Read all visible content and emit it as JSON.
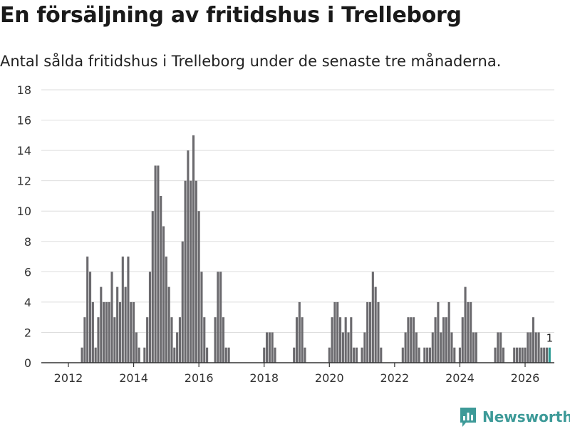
{
  "header": {
    "title": "En försäljning av fritidshus i Trelleborg",
    "subtitle": "Antal sålda fritidshus i Trelleborg under de senaste tre månaderna."
  },
  "brand": {
    "name": "Newsworthy"
  },
  "colors": {
    "bar": "#6b6a6e",
    "highlight": "#2b9a94",
    "grid": "#dddddd",
    "axis": "#333333",
    "brand": "#3d9a98"
  },
  "chart_data": {
    "type": "bar",
    "title": "En försäljning av fritidshus i Trelleborg",
    "subtitle": "Antal sålda fritidshus i Trelleborg under de senaste tre månaderna.",
    "xlabel": "",
    "ylabel": "",
    "ylim": [
      0,
      18
    ],
    "yticks": [
      "0",
      "2",
      "4",
      "6",
      "8",
      "10",
      "12",
      "14",
      "16",
      "18"
    ],
    "xticks": [
      "2012",
      "2014",
      "2016",
      "2018",
      "2020",
      "2022",
      "2024",
      "2026"
    ],
    "grid": true,
    "x_start": "2011-08",
    "frequency": "monthly",
    "values": [
      0,
      0,
      0,
      0,
      0,
      0,
      0,
      0,
      0,
      0,
      1,
      3,
      7,
      6,
      4,
      1,
      3,
      5,
      4,
      4,
      4,
      6,
      3,
      5,
      4,
      7,
      5,
      7,
      4,
      4,
      2,
      1,
      0,
      1,
      3,
      6,
      10,
      13,
      13,
      11,
      9,
      7,
      5,
      3,
      1,
      2,
      3,
      8,
      12,
      14,
      12,
      15,
      12,
      10,
      6,
      3,
      1,
      0,
      0,
      3,
      6,
      6,
      3,
      1,
      1,
      0,
      0,
      0,
      0,
      0,
      0,
      0,
      0,
      0,
      0,
      0,
      0,
      1,
      2,
      2,
      2,
      1,
      0,
      0,
      0,
      0,
      0,
      0,
      1,
      3,
      4,
      3,
      1,
      0,
      0,
      0,
      0,
      0,
      0,
      0,
      0,
      1,
      3,
      4,
      4,
      3,
      2,
      3,
      2,
      3,
      1,
      1,
      0,
      1,
      2,
      4,
      4,
      6,
      5,
      4,
      1,
      0,
      0,
      0,
      0,
      0,
      0,
      0,
      1,
      2,
      3,
      3,
      3,
      2,
      1,
      0,
      1,
      1,
      1,
      2,
      3,
      4,
      2,
      3,
      3,
      4,
      2,
      1,
      0,
      1,
      3,
      5,
      4,
      4,
      2,
      2,
      0,
      0,
      0,
      0,
      0,
      0,
      1,
      2,
      2,
      1,
      0,
      0,
      0,
      1,
      1,
      1,
      1,
      1,
      2,
      2,
      3,
      2,
      2,
      1,
      1,
      1,
      1
    ],
    "last_value": 1,
    "data_labels": [
      "1"
    ],
    "highlight": "last bar"
  }
}
